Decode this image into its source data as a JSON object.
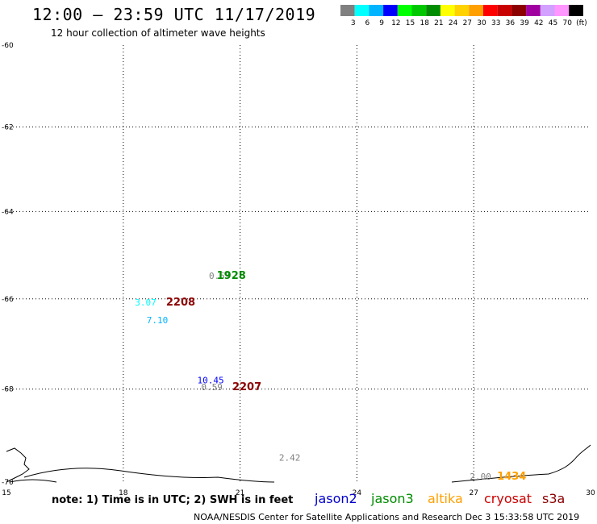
{
  "header": {
    "title": "12:00 — 23:59 UTC 11/17/2019",
    "subtitle": "12 hour collection of altimeter wave heights"
  },
  "legend": {
    "colors": [
      "#808080",
      "#00ffff",
      "#00b4ff",
      "#0000ff",
      "#00ff00",
      "#00c800",
      "#008c00",
      "#ffff00",
      "#ffd200",
      "#ffa000",
      "#ff0000",
      "#c80000",
      "#8c0000",
      "#a000a0",
      "#d2a0ff",
      "#ff96ff",
      "#000000"
    ],
    "labels": [
      "3",
      "6",
      "9",
      "12",
      "15",
      "18",
      "21",
      "24",
      "27",
      "30",
      "33",
      "36",
      "39",
      "42",
      "45",
      "70",
      "(ft)"
    ]
  },
  "axes": {
    "x_ticks": [
      "15",
      "18",
      "21",
      "24",
      "27",
      "30"
    ],
    "y_ticks": [
      "-60",
      "-62",
      "-64",
      "-66",
      "-68",
      "-70"
    ],
    "x_range": [
      15,
      30
    ],
    "y_range": [
      -70,
      -60
    ],
    "grid": "dotted"
  },
  "observations": [
    {
      "lon": 20.2,
      "lat": -65.55,
      "value": "0.59",
      "color": "#808080"
    },
    {
      "lon": 20.4,
      "lat": -65.55,
      "label": "1928",
      "color": "#008c00"
    },
    {
      "lon": 18.3,
      "lat": -66.15,
      "value": "3.07",
      "color": "#00ffff"
    },
    {
      "lon": 19.1,
      "lat": -66.15,
      "label": "2208",
      "color": "#8c0000"
    },
    {
      "lon": 18.6,
      "lat": -66.55,
      "value": "7.10",
      "color": "#00b4ff"
    },
    {
      "lon": 19.9,
      "lat": -67.87,
      "value": "10.45",
      "color": "#0000ff"
    },
    {
      "lon": 20.0,
      "lat": -68.02,
      "value": "0.59",
      "color": "#808080"
    },
    {
      "lon": 20.8,
      "lat": -68.02,
      "label": "2207",
      "color": "#8c0000"
    },
    {
      "lon": 22.0,
      "lat": -69.55,
      "value": "2.42",
      "color": "#808080"
    },
    {
      "lon": 26.9,
      "lat": -69.95,
      "value": "2.00",
      "color": "#808080"
    },
    {
      "lon": 27.6,
      "lat": -69.95,
      "label": "1434",
      "color": "#ffa000"
    }
  ],
  "footer": {
    "note": "note: 1) Time is in UTC; 2) SWH is in feet",
    "satellites": [
      {
        "name": "jason2",
        "color": "#0000cc"
      },
      {
        "name": "jason3",
        "color": "#008c00"
      },
      {
        "name": "altika",
        "color": "#ffa000"
      },
      {
        "name": "cryosat",
        "color": "#cc0000"
      },
      {
        "name": "s3a",
        "color": "#8c0000"
      }
    ],
    "credit": "NOAA/NESDIS Center for Satellite Applications and Research    Dec  3 15:33:58 UTC 2019"
  }
}
